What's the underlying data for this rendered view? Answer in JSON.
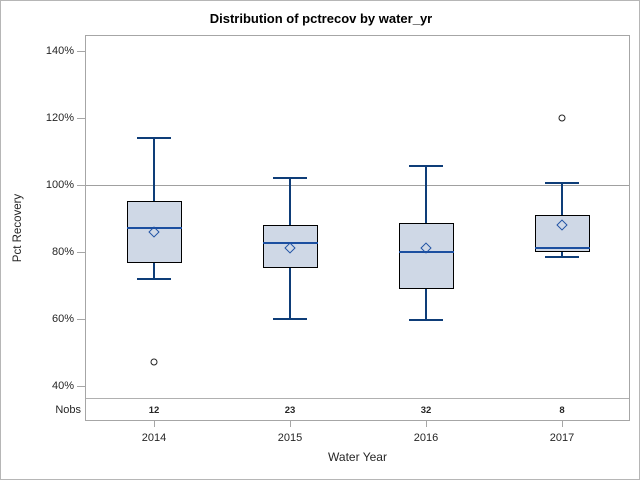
{
  "chart_data": {
    "type": "boxplot",
    "title": "Distribution of pctrecov by water_yr",
    "xlabel": "Water Year",
    "ylabel": "Pct Recovery",
    "nobs_label": "Nobs",
    "categories": [
      "2014",
      "2015",
      "2016",
      "2017"
    ],
    "nobs": [
      12,
      23,
      32,
      8
    ],
    "series": [
      {
        "category": "2014",
        "n": 12,
        "whisker_low": 72,
        "q1": 76.5,
        "median": 87,
        "mean": 86,
        "q3": 95,
        "whisker_high": 114,
        "outliers": [
          47
        ]
      },
      {
        "category": "2015",
        "n": 23,
        "whisker_low": 60,
        "q1": 75,
        "median": 82.5,
        "mean": 81,
        "q3": 88,
        "whisker_high": 102,
        "outliers": []
      },
      {
        "category": "2016",
        "n": 32,
        "whisker_low": 59.5,
        "q1": 69,
        "median": 80,
        "mean": 81,
        "q3": 88.5,
        "whisker_high": 105.5,
        "outliers": []
      },
      {
        "category": "2017",
        "n": 8,
        "whisker_low": 78.5,
        "q1": 80,
        "median": 81,
        "mean": 88,
        "q3": 91,
        "whisker_high": 100.5,
        "outliers": [
          120
        ]
      }
    ],
    "y_ticks": [
      {
        "value": 140,
        "label": "140%"
      },
      {
        "value": 120,
        "label": "120%"
      },
      {
        "value": 100,
        "label": "100%"
      },
      {
        "value": 80,
        "label": "80%"
      },
      {
        "value": 60,
        "label": "60%"
      },
      {
        "value": 40,
        "label": "40%"
      }
    ],
    "ylim": [
      28,
      145
    ],
    "reference_line": 100,
    "grid": "off",
    "legend": "none",
    "colors": {
      "box_fill": "#cfd8e6",
      "box_border": "#000000",
      "whisker": "#0e3d78",
      "median": "#1c4fa0",
      "mean_marker": "#2153a4",
      "outlier": "#222222",
      "reference_line": "#a0a0a0",
      "frame": "#a6a6a6",
      "text": "#262626"
    }
  }
}
